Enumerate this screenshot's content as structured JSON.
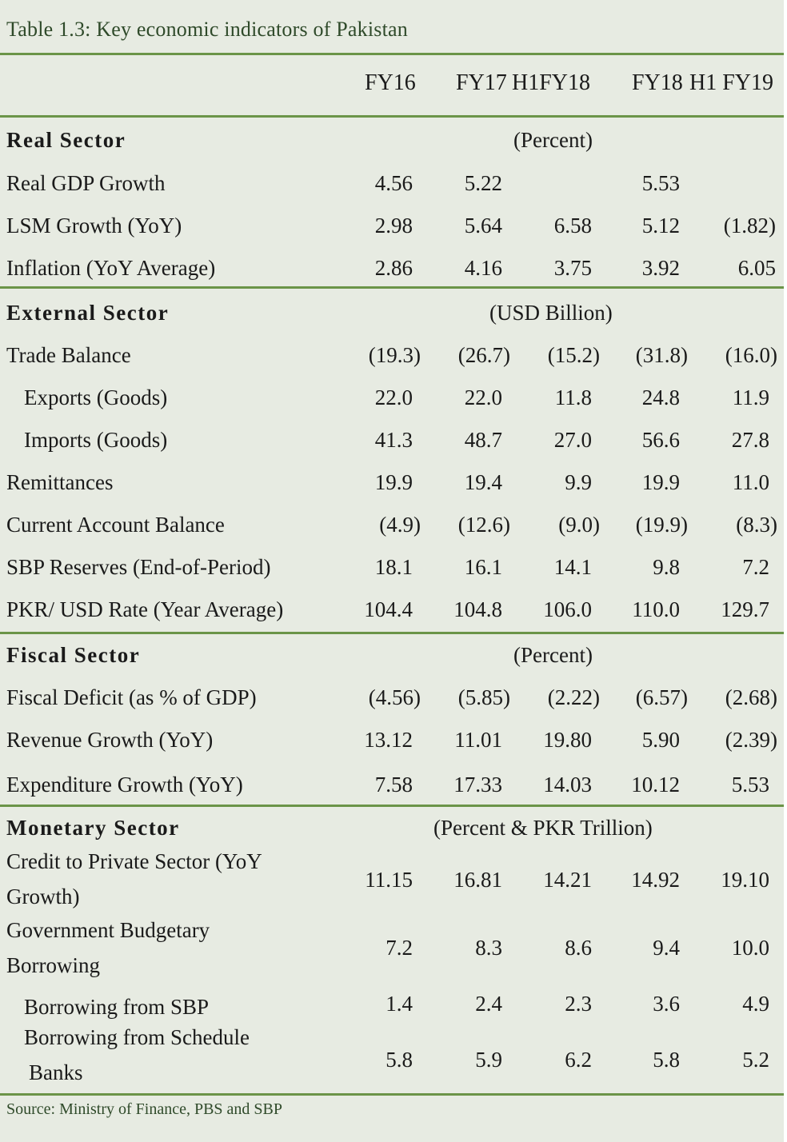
{
  "title": "Table 1.3: Key economic indicators of Pakistan",
  "columns": [
    "FY16",
    "FY17",
    "H1FY18",
    "FY18",
    "H1 FY19"
  ],
  "sections": [
    {
      "name": "Real Sector",
      "unit": "(Percent)",
      "rows": [
        {
          "label": "Real GDP Growth",
          "values": [
            "4.56",
            "5.22",
            "",
            "5.53",
            ""
          ]
        },
        {
          "label": "LSM Growth (YoY)",
          "values": [
            "2.98",
            "5.64",
            "6.58",
            "5.12",
            "(1.82)"
          ]
        },
        {
          "label": "Inflation (YoY Average)",
          "values": [
            "2.86",
            "4.16",
            "3.75",
            "3.92",
            "6.05"
          ]
        }
      ]
    },
    {
      "name": "External Sector",
      "unit": "(USD Billion)",
      "rows": [
        {
          "label": "Trade Balance",
          "values": [
            "(19.3)",
            "(26.7)",
            "(15.2)",
            "(31.8)",
            "(16.0)"
          ]
        },
        {
          "label": "Exports (Goods)",
          "values": [
            "22.0",
            "22.0",
            "11.8",
            "24.8",
            "11.9"
          ]
        },
        {
          "label": "Imports (Goods)",
          "values": [
            "41.3",
            "48.7",
            "27.0",
            "56.6",
            "27.8"
          ]
        },
        {
          "label": "Remittances",
          "values": [
            "19.9",
            "19.4",
            "9.9",
            "19.9",
            "11.0"
          ]
        },
        {
          "label": "Current Account Balance",
          "values": [
            "(4.9)",
            "(12.6)",
            "(9.0)",
            "(19.9)",
            "(8.3)"
          ]
        },
        {
          "label": "SBP Reserves (End-of-Period)",
          "values": [
            "18.1",
            "16.1",
            "14.1",
            "9.8",
            "7.2"
          ]
        },
        {
          "label": "PKR/ USD Rate (Year Average)",
          "values": [
            "104.4",
            "104.8",
            "106.0",
            "110.0",
            "129.7"
          ]
        }
      ]
    },
    {
      "name": "Fiscal Sector",
      "unit": "(Percent)",
      "rows": [
        {
          "label": "Fiscal Deficit (as % of GDP)",
          "values": [
            "(4.56)",
            "(5.85)",
            "(2.22)",
            "(6.57)",
            "(2.68)"
          ]
        },
        {
          "label": "Revenue Growth (YoY)",
          "values": [
            "13.12",
            "11.01",
            "19.80",
            "5.90",
            "(2.39)"
          ]
        },
        {
          "label": "Expenditure Growth (YoY)",
          "values": [
            "7.58",
            "17.33",
            "14.03",
            "10.12",
            "5.53"
          ]
        }
      ]
    },
    {
      "name": "Monetary Sector",
      "unit": "(Percent & PKR Trillion)",
      "rows": [
        {
          "label_lines": [
            "Credit to Private Sector (YoY",
            "Growth)"
          ],
          "values": [
            "11.15",
            "16.81",
            "14.21",
            "14.92",
            "19.10"
          ]
        },
        {
          "label_lines": [
            "Government Budgetary",
            "Borrowing"
          ],
          "values": [
            "7.2",
            "8.3",
            "8.6",
            "9.4",
            "10.0"
          ]
        },
        {
          "label": "Borrowing from SBP",
          "values": [
            "1.4",
            "2.4",
            "2.3",
            "3.6",
            "4.9"
          ]
        },
        {
          "label_lines": [
            "Borrowing from Schedule",
            "Banks"
          ],
          "values": [
            "5.8",
            "5.9",
            "6.2",
            "5.8",
            "5.2"
          ]
        }
      ]
    }
  ],
  "source": "Source: Ministry of Finance, PBS and SBP",
  "colors": {
    "rule": "#6b9448",
    "background": "#e7ebe2",
    "title": "#2f4a2a"
  }
}
